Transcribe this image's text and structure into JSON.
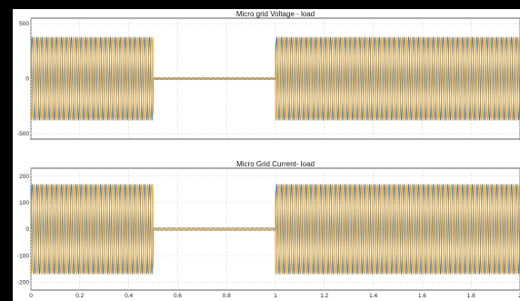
{
  "chart_data": [
    {
      "type": "line",
      "title": "Micro grid Voltage - load",
      "xlabel": "",
      "ylabel": "",
      "xlim": [
        0,
        2
      ],
      "ylim": [
        -550,
        550
      ],
      "x_ticks": [
        0,
        0.2,
        0.4,
        0.6,
        0.8,
        1,
        1.2,
        1.4,
        1.6,
        1.8,
        2
      ],
      "y_ticks": [
        -500,
        0,
        500
      ],
      "y_tick_labels": [
        "-500",
        "0",
        "500"
      ],
      "grid": true,
      "waveform": {
        "frequency_hz": 50,
        "phases": 3,
        "amplitude": 380,
        "active_intervals": [
          [
            0,
            0.5
          ],
          [
            1,
            2
          ]
        ],
        "inactive_amplitude": 10
      },
      "series": [
        {
          "color": "#1f6fd1"
        },
        {
          "color": "#e8901c"
        },
        {
          "color": "#d9a521"
        }
      ]
    },
    {
      "type": "line",
      "title": "Micro Grid Current- load",
      "xlabel": "",
      "ylabel": "",
      "xlim": [
        0,
        2
      ],
      "ylim": [
        -230,
        230
      ],
      "x_ticks": [
        0,
        0.2,
        0.4,
        0.6,
        0.8,
        1,
        1.2,
        1.4,
        1.6,
        1.8,
        2
      ],
      "x_tick_labels": [
        "0",
        "0.2",
        "0.4",
        "0.6",
        "0.8",
        "1",
        "1.2",
        "1.4",
        "1.6",
        "1.8",
        "2"
      ],
      "y_ticks": [
        -200,
        -100,
        0,
        100,
        200
      ],
      "y_tick_labels": [
        "-200",
        "-100",
        "0",
        "100",
        "200"
      ],
      "grid": true,
      "waveform": {
        "frequency_hz": 50,
        "phases": 3,
        "amplitude": 170,
        "active_intervals": [
          [
            0,
            0.5
          ],
          [
            1,
            2
          ]
        ],
        "inactive_amplitude": 5
      },
      "series": [
        {
          "color": "#1f6fd1"
        },
        {
          "color": "#e8901c"
        },
        {
          "color": "#d9a521"
        }
      ]
    }
  ]
}
